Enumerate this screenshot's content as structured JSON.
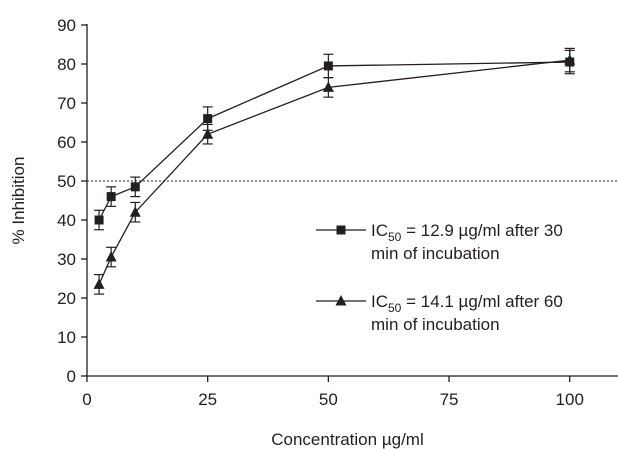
{
  "chart_data": {
    "type": "line",
    "xlabel": "Concentration µg/ml",
    "ylabel": "% Inhibition",
    "xlim": [
      0,
      110
    ],
    "ylim": [
      0,
      90
    ],
    "x_ticks": [
      0,
      25,
      50,
      75,
      100
    ],
    "y_ticks": [
      0,
      10,
      20,
      30,
      40,
      50,
      60,
      70,
      80,
      90
    ],
    "grid": false,
    "legend_position": "right",
    "reference_line": {
      "y": 50,
      "style": "dotted"
    },
    "series": [
      {
        "marker": "square",
        "legend": {
          "prefix": "IC",
          "subscript": "50",
          "value_text": " = 12.9 µg/ml after 30",
          "line2": "min of incubation"
        },
        "x": [
          2.5,
          5,
          10,
          25,
          50,
          100
        ],
        "y": [
          40,
          46,
          48.5,
          66,
          79.5,
          80.5
        ],
        "error": [
          2.5,
          2.5,
          2.5,
          3,
          3,
          3
        ]
      },
      {
        "marker": "triangle",
        "legend": {
          "prefix": "IC",
          "subscript": "50",
          "value_text": " = 14.1 µg/ml after 60",
          "line2": "min of incubation"
        },
        "x": [
          2.5,
          5,
          10,
          25,
          50,
          100
        ],
        "y": [
          23.5,
          30.5,
          42,
          62,
          74,
          81
        ],
        "error": [
          2.5,
          2.5,
          2.5,
          2.5,
          2.5,
          3
        ]
      }
    ],
    "colors": {
      "line": "#231f20",
      "reference": "#231f20"
    }
  }
}
